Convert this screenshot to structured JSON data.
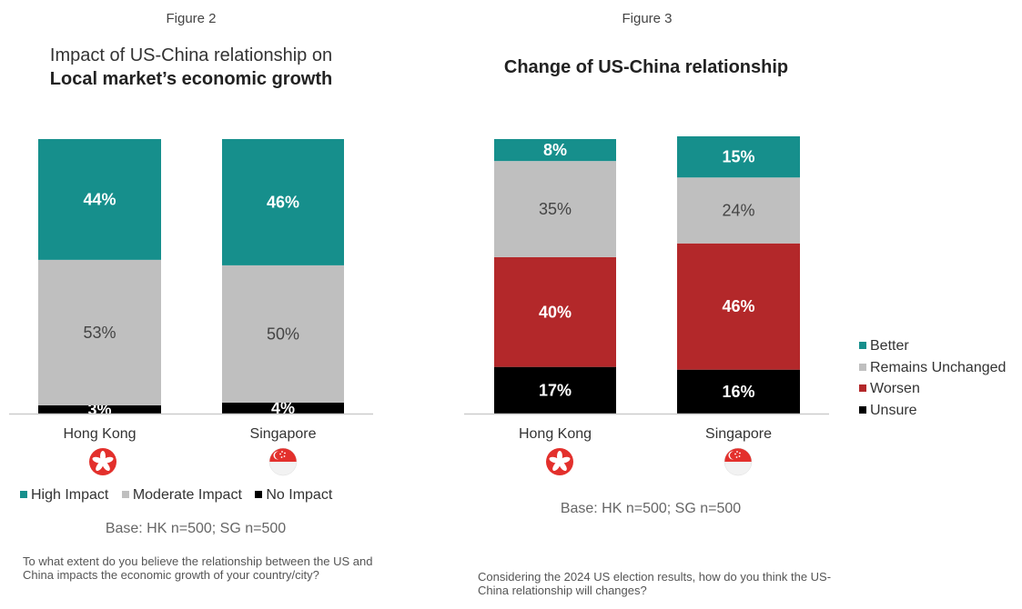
{
  "colors": {
    "high_impact": "#168f8c",
    "moderate_impact": "#bfbfbf",
    "no_impact": "#000000",
    "better": "#168f8c",
    "remains_unchanged": "#bfbfbf",
    "worsen": "#b3282a",
    "unsure": "#000000",
    "flag_hk": "#e3302c",
    "flag_sg": "#e3302c"
  },
  "figure2": {
    "label": "Figure 2",
    "title_line1": "Impact of US-China relationship on",
    "title_line2": "Local market’s economic growth",
    "legend": [
      "High Impact",
      "Moderate Impact",
      "No Impact"
    ],
    "base": "Base: HK n=500; SG n=500",
    "question": "To what extent do you believe the relationship between the US and China impacts the economic growth of your country/city?"
  },
  "figure3": {
    "label": "Figure 3",
    "title": "Change of US-China relationship",
    "legend": [
      "Better",
      "Remains Unchanged",
      "Worsen",
      "Unsure"
    ],
    "base": "Base: HK n=500; SG n=500",
    "question": "Considering the 2024 US election results, how do you think the US-China relationship will changes?"
  },
  "chart_data": [
    {
      "type": "bar",
      "stacked": true,
      "title": "Impact of US-China relationship on Local market’s economic growth",
      "categories": [
        "Hong Kong",
        "Singapore"
      ],
      "series": [
        {
          "name": "No Impact",
          "values": [
            3,
            4
          ],
          "labels": [
            "3%",
            "4%"
          ]
        },
        {
          "name": "Moderate Impact",
          "values": [
            53,
            50
          ],
          "labels": [
            "53%",
            "50%"
          ]
        },
        {
          "name": "High Impact",
          "values": [
            44,
            46
          ],
          "labels": [
            "44%",
            "46%"
          ]
        }
      ],
      "ylim": [
        0,
        100
      ],
      "grid": false,
      "legend_position": "bottom"
    },
    {
      "type": "bar",
      "stacked": true,
      "title": "Change of US-China relationship",
      "categories": [
        "Hong Kong",
        "Singapore"
      ],
      "series": [
        {
          "name": "Unsure",
          "values": [
            17,
            16
          ],
          "labels": [
            "17%",
            "16%"
          ]
        },
        {
          "name": "Worsen",
          "values": [
            40,
            46
          ],
          "labels": [
            "40%",
            "46%"
          ]
        },
        {
          "name": "Remains Unchanged",
          "values": [
            35,
            24
          ],
          "labels": [
            "35%",
            "24%"
          ]
        },
        {
          "name": "Better",
          "values": [
            8,
            15
          ],
          "labels": [
            "8%",
            "15%"
          ]
        }
      ],
      "ylim": [
        0,
        100
      ],
      "grid": false,
      "legend_position": "right"
    }
  ]
}
